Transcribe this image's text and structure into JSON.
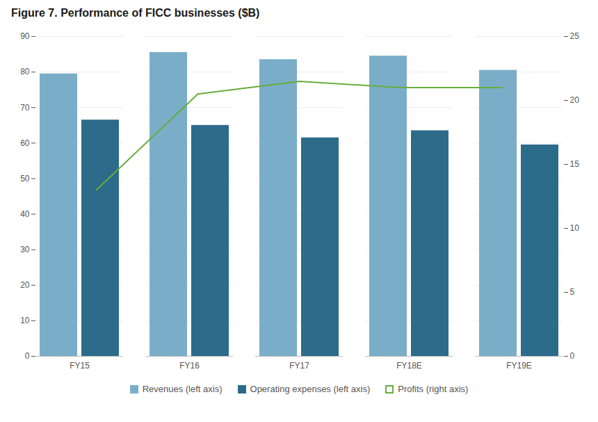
{
  "chart_data": {
    "type": "bar",
    "title": "Figure 7. Performance of FICC businesses ($B)",
    "categories": [
      "FY15",
      "FY16",
      "FY17",
      "FY18E",
      "FY19E"
    ],
    "series": [
      {
        "name": "Revenues (left axis)",
        "color": "#7AAEC8",
        "values": [
          79.5,
          85.5,
          83.5,
          84.5,
          80.5
        ]
      },
      {
        "name": "Operating expenses (left axis)",
        "color": "#2D6B8A",
        "values": [
          66.5,
          65.0,
          61.5,
          63.5,
          59.5
        ]
      },
      {
        "name": "Profits (right axis)",
        "color": "#6AAB3E",
        "values": [
          13.0,
          20.5,
          21.5,
          21.0,
          21.0
        ],
        "type": "line",
        "axis": "y2"
      }
    ],
    "ylim": [
      0,
      90
    ],
    "yticks": [
      0,
      10,
      20,
      30,
      40,
      50,
      60,
      70,
      80,
      90
    ],
    "y2lim": [
      0,
      25
    ],
    "y2ticks": [
      0,
      5,
      10,
      15,
      20,
      25
    ],
    "grid": true,
    "legend": "bottom"
  }
}
